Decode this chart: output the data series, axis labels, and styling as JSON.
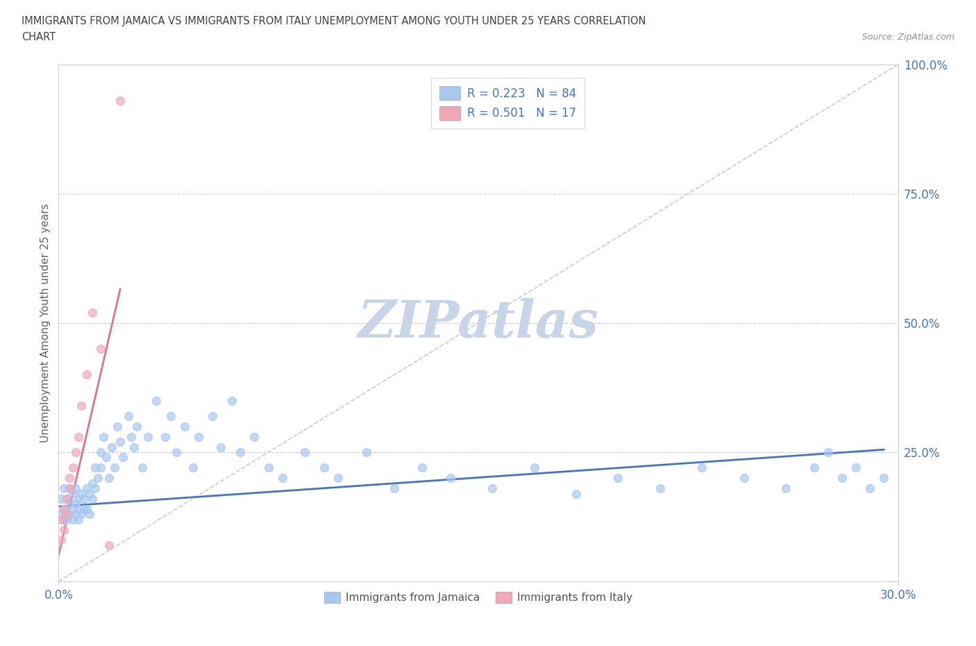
{
  "title_line1": "IMMIGRANTS FROM JAMAICA VS IMMIGRANTS FROM ITALY UNEMPLOYMENT AMONG YOUTH UNDER 25 YEARS CORRELATION",
  "title_line2": "CHART",
  "source": "Source: ZipAtlas.com",
  "ylabel": "Unemployment Among Youth under 25 years",
  "xlim": [
    0.0,
    0.3
  ],
  "ylim": [
    0.0,
    1.0
  ],
  "xticks": [
    0.0,
    0.3
  ],
  "xticklabels": [
    "0.0%",
    "30.0%"
  ],
  "yticks": [
    0.25,
    0.5,
    0.75,
    1.0
  ],
  "yticklabels": [
    "25.0%",
    "50.0%",
    "75.0%",
    "100.0%"
  ],
  "jamaica_color": "#A8C8F0",
  "italy_color": "#F0A8B8",
  "jamaica_trend_color": "#4472C4",
  "italy_trend_color": "#E07090",
  "diagonal_color": "#C8C8D8",
  "watermark": "ZIPatlas",
  "watermark_color": "#C8D4E8",
  "legend_label_jamaica": "R = 0.223   N = 84",
  "legend_label_italy": "R = 0.501   N = 17",
  "legend_text_color": "#4472C4",
  "axis_text_color": "#4472C4",
  "title_color": "#404040",
  "ylabel_color": "#606060",
  "source_color": "#909090",
  "jamaica_x": [
    0.001,
    0.001,
    0.002,
    0.002,
    0.002,
    0.003,
    0.003,
    0.003,
    0.004,
    0.004,
    0.004,
    0.005,
    0.005,
    0.005,
    0.006,
    0.006,
    0.006,
    0.007,
    0.007,
    0.007,
    0.008,
    0.008,
    0.009,
    0.009,
    0.01,
    0.01,
    0.011,
    0.011,
    0.012,
    0.012,
    0.013,
    0.013,
    0.014,
    0.015,
    0.015,
    0.016,
    0.017,
    0.018,
    0.019,
    0.02,
    0.021,
    0.022,
    0.023,
    0.025,
    0.026,
    0.027,
    0.028,
    0.03,
    0.032,
    0.035,
    0.038,
    0.04,
    0.042,
    0.045,
    0.048,
    0.05,
    0.055,
    0.058,
    0.062,
    0.065,
    0.07,
    0.075,
    0.08,
    0.088,
    0.095,
    0.1,
    0.11,
    0.12,
    0.13,
    0.14,
    0.155,
    0.17,
    0.185,
    0.2,
    0.215,
    0.23,
    0.245,
    0.26,
    0.27,
    0.275,
    0.28,
    0.285,
    0.29,
    0.295
  ],
  "jamaica_y": [
    0.13,
    0.16,
    0.14,
    0.18,
    0.12,
    0.13,
    0.16,
    0.12,
    0.15,
    0.18,
    0.13,
    0.14,
    0.17,
    0.12,
    0.15,
    0.18,
    0.13,
    0.16,
    0.14,
    0.12,
    0.17,
    0.13,
    0.16,
    0.14,
    0.18,
    0.14,
    0.17,
    0.13,
    0.19,
    0.16,
    0.22,
    0.18,
    0.2,
    0.25,
    0.22,
    0.28,
    0.24,
    0.2,
    0.26,
    0.22,
    0.3,
    0.27,
    0.24,
    0.32,
    0.28,
    0.26,
    0.3,
    0.22,
    0.28,
    0.35,
    0.28,
    0.32,
    0.25,
    0.3,
    0.22,
    0.28,
    0.32,
    0.26,
    0.35,
    0.25,
    0.28,
    0.22,
    0.2,
    0.25,
    0.22,
    0.2,
    0.25,
    0.18,
    0.22,
    0.2,
    0.18,
    0.22,
    0.17,
    0.2,
    0.18,
    0.22,
    0.2,
    0.18,
    0.22,
    0.25,
    0.2,
    0.22,
    0.18,
    0.2
  ],
  "italy_x": [
    0.001,
    0.001,
    0.002,
    0.002,
    0.003,
    0.003,
    0.004,
    0.004,
    0.005,
    0.006,
    0.007,
    0.008,
    0.01,
    0.012,
    0.015,
    0.018,
    0.022
  ],
  "italy_y": [
    0.08,
    0.12,
    0.1,
    0.14,
    0.13,
    0.16,
    0.18,
    0.2,
    0.22,
    0.25,
    0.28,
    0.34,
    0.4,
    0.52,
    0.45,
    0.07,
    0.93
  ],
  "italy_trend_x0": 0.0,
  "italy_trend_x1": 0.022,
  "italy_trend_y0": 0.05,
  "italy_trend_y1": 0.565,
  "jamaica_trend_x0": 0.0,
  "jamaica_trend_x1": 0.295,
  "jamaica_trend_y0": 0.145,
  "jamaica_trend_y1": 0.255
}
